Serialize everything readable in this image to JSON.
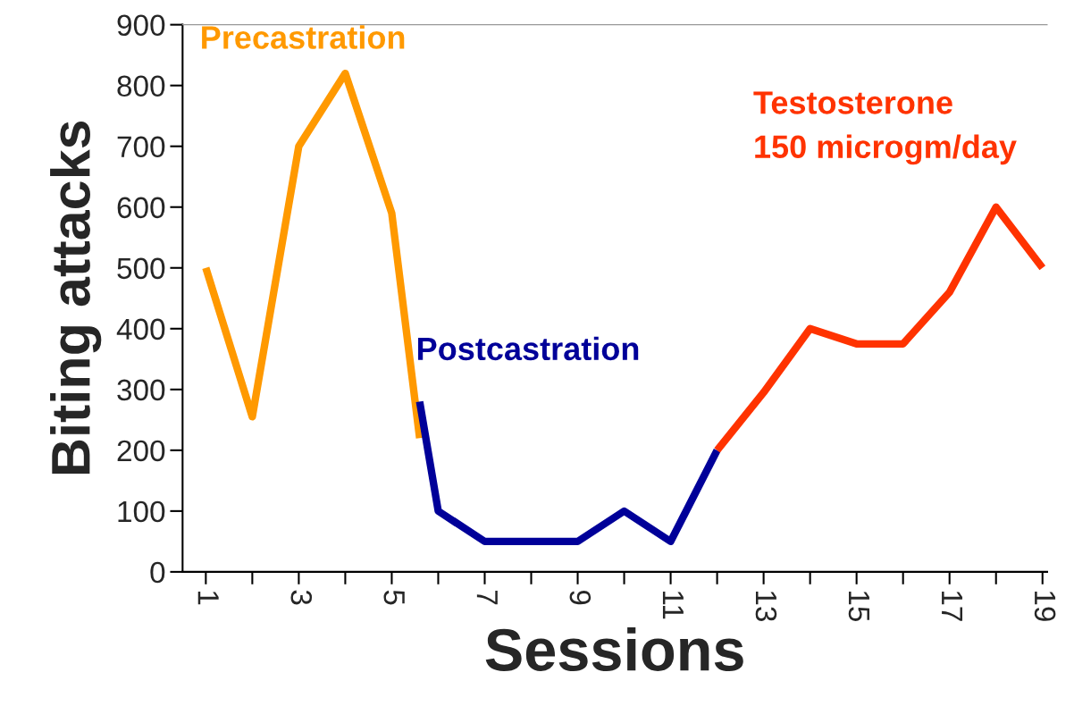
{
  "chart_data": {
    "type": "line",
    "xlabel": "Sessions",
    "ylabel": "Biting attacks",
    "xlim": [
      0.5,
      19.1
    ],
    "ylim": [
      0,
      900
    ],
    "xticks": [
      1,
      {
        "value": 2,
        "label": null
      },
      3,
      {
        "value": 4,
        "label": null
      },
      5,
      {
        "value": 6,
        "label": null
      },
      7,
      {
        "value": 8,
        "label": null
      },
      9,
      {
        "value": 10,
        "label": null
      },
      11,
      {
        "value": 12,
        "label": null
      },
      13,
      {
        "value": 14,
        "label": null
      },
      15,
      {
        "value": 16,
        "label": null
      },
      17,
      {
        "value": 18,
        "label": null
      },
      19
    ],
    "yticks": [
      0,
      100,
      200,
      300,
      400,
      500,
      600,
      700,
      800,
      900
    ],
    "grid": false,
    "legend": false,
    "marker": "none",
    "line_style": "solid",
    "series": [
      {
        "name": "Precastration",
        "color": "#ff9900",
        "x": [
          1,
          2,
          3,
          4,
          5,
          5.6
        ],
        "values": [
          500,
          255,
          700,
          820,
          590,
          220
        ]
      },
      {
        "name": "Postcastration",
        "color": "#000099",
        "x": [
          5.6,
          6,
          7,
          8,
          9,
          10,
          11,
          12
        ],
        "values": [
          280,
          100,
          50,
          50,
          50,
          100,
          50,
          200
        ]
      },
      {
        "name": "Testosterone\n150 microgm/day",
        "color": "#ff3300",
        "x": [
          12,
          13,
          14,
          15,
          16,
          17,
          18,
          19
        ],
        "values": [
          200,
          295,
          400,
          375,
          375,
          460,
          600,
          500
        ]
      }
    ]
  }
}
